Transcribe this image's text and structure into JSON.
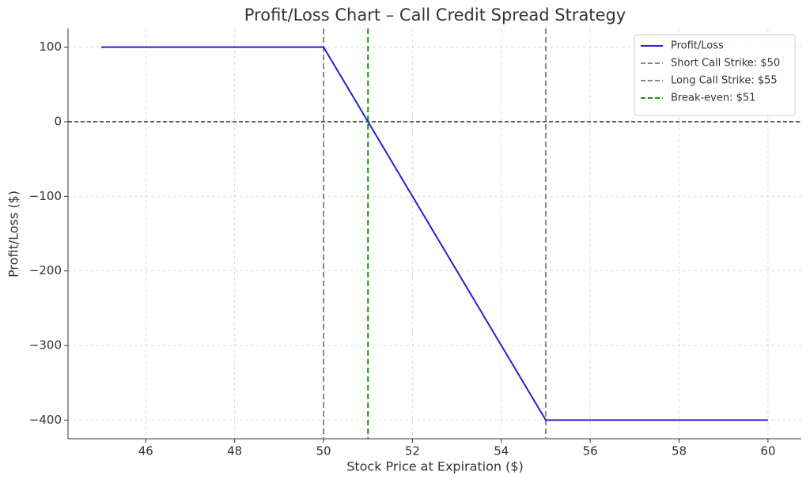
{
  "chart_data": {
    "type": "line",
    "title": "Profit/Loss Chart – Call Credit Spread Strategy",
    "xlabel": "Stock Price at Expiration ($)",
    "ylabel": "Profit/Loss ($)",
    "x": [
      45,
      50,
      55,
      60
    ],
    "series": [
      {
        "name": "Profit/Loss",
        "color": "#2222cc",
        "values": [
          100,
          100,
          -400,
          -400
        ]
      }
    ],
    "vlines": [
      {
        "name": "Short Call Strike: $50",
        "x": 50,
        "color": "#888888"
      },
      {
        "name": "Long Call Strike: $55",
        "x": 55,
        "color": "#888888"
      },
      {
        "name": "Break-even: $51",
        "x": 51,
        "color": "#119911"
      }
    ],
    "hline": {
      "y": 0,
      "color": "#222222"
    },
    "xlim": [
      44.25,
      60.75
    ],
    "xticks": [
      46,
      48,
      50,
      52,
      54,
      56,
      58,
      60
    ],
    "ylim": [
      -425,
      125
    ],
    "yticks": [
      {
        "value": -400,
        "label": "−400"
      },
      {
        "value": -300,
        "label": "−300"
      },
      {
        "value": -200,
        "label": "−200"
      },
      {
        "value": -100,
        "label": "−100"
      },
      0,
      100
    ],
    "grid": true,
    "legend": "upper right"
  }
}
